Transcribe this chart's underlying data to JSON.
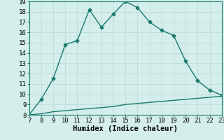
{
  "x": [
    7,
    8,
    9,
    10,
    11,
    12,
    13,
    14,
    15,
    16,
    17,
    18,
    19,
    20,
    21,
    22,
    23
  ],
  "y_top": [
    8.0,
    9.5,
    11.5,
    14.8,
    15.2,
    18.2,
    16.5,
    17.8,
    19.0,
    18.4,
    17.0,
    16.2,
    15.7,
    13.2,
    11.3,
    10.4,
    9.9
  ],
  "y_bot": [
    8.0,
    8.1,
    8.3,
    8.4,
    8.5,
    8.6,
    8.7,
    8.8,
    9.0,
    9.1,
    9.2,
    9.3,
    9.4,
    9.5,
    9.6,
    9.7,
    9.8
  ],
  "line_color": "#1a7a6e",
  "bg_color": "#d4eeeb",
  "grid_color": "#c0deda",
  "xlabel": "Humidex (Indice chaleur)",
  "xlim": [
    7,
    23
  ],
  "ylim": [
    8,
    19
  ],
  "xticks": [
    7,
    8,
    9,
    10,
    11,
    12,
    13,
    14,
    15,
    16,
    17,
    18,
    19,
    20,
    21,
    22,
    23
  ],
  "yticks": [
    8,
    9,
    10,
    11,
    12,
    13,
    14,
    15,
    16,
    17,
    18,
    19
  ],
  "marker": "D",
  "markersize": 2.5,
  "linewidth": 1.0,
  "tick_fontsize": 6.5,
  "label_fontsize": 7.5
}
